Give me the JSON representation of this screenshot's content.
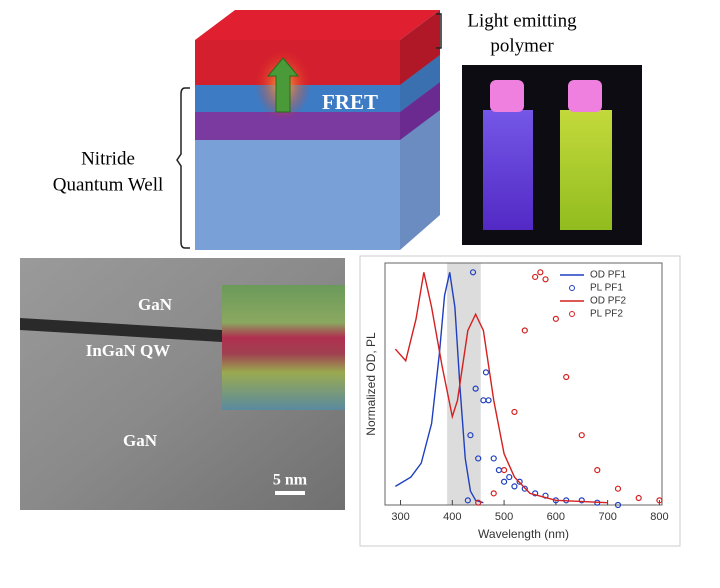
{
  "diagram": {
    "polymer_label": [
      "Light emitting",
      "polymer"
    ],
    "well_label": [
      "Nitride",
      "Quantum Well"
    ],
    "fret_label": "FRET",
    "tem_labels": [
      "GaN",
      "InGaN QW",
      "GaN"
    ],
    "scale_label": "5 nm"
  },
  "chart_data": {
    "type": "line",
    "x_label": "Wavelength (nm)",
    "y_label": "Normalized OD, PL",
    "xlim": [
      270,
      805
    ],
    "ylim": [
      0,
      1.04
    ],
    "xticks": [
      300,
      400,
      500,
      600,
      700,
      800
    ],
    "shaded_range": [
      390,
      455
    ],
    "legend": "upper right",
    "series": [
      {
        "name": "OD PF1",
        "color": "#1f3fbf",
        "marker": "line",
        "x": [
          290,
          320,
          340,
          360,
          375,
          385,
          395,
          405,
          415,
          425,
          435,
          445,
          460
        ],
        "values": [
          0.08,
          0.12,
          0.18,
          0.35,
          0.65,
          0.9,
          1.0,
          0.85,
          0.5,
          0.2,
          0.06,
          0.02,
          0.01
        ]
      },
      {
        "name": "PL PF1",
        "color": "#1f3fbf",
        "marker": "circle",
        "x": [
          430,
          435,
          440,
          445,
          450,
          460,
          465,
          470,
          480,
          490,
          500,
          510,
          520,
          530,
          540,
          560,
          580,
          600,
          620,
          650,
          680,
          720
        ],
        "values": [
          0.02,
          0.3,
          1.0,
          0.5,
          0.2,
          0.45,
          0.57,
          0.45,
          0.2,
          0.15,
          0.1,
          0.12,
          0.08,
          0.1,
          0.07,
          0.05,
          0.04,
          0.02,
          0.02,
          0.02,
          0.01,
          0.0
        ]
      },
      {
        "name": "OD PF2",
        "color": "#d42020",
        "marker": "line",
        "x": [
          290,
          310,
          330,
          345,
          360,
          380,
          400,
          410,
          430,
          445,
          460,
          480,
          500,
          520,
          550,
          600,
          700
        ],
        "values": [
          0.67,
          0.62,
          0.8,
          1.0,
          0.85,
          0.6,
          0.38,
          0.45,
          0.75,
          0.82,
          0.75,
          0.45,
          0.22,
          0.12,
          0.05,
          0.02,
          0.01
        ]
      },
      {
        "name": "PL PF2",
        "color": "#d42020",
        "marker": "circle",
        "x": [
          450,
          480,
          500,
          520,
          540,
          560,
          570,
          580,
          600,
          620,
          650,
          680,
          720,
          760,
          800
        ],
        "values": [
          0.01,
          0.05,
          0.15,
          0.4,
          0.75,
          0.98,
          1.0,
          0.97,
          0.8,
          0.55,
          0.3,
          0.15,
          0.07,
          0.03,
          0.02
        ]
      }
    ]
  }
}
